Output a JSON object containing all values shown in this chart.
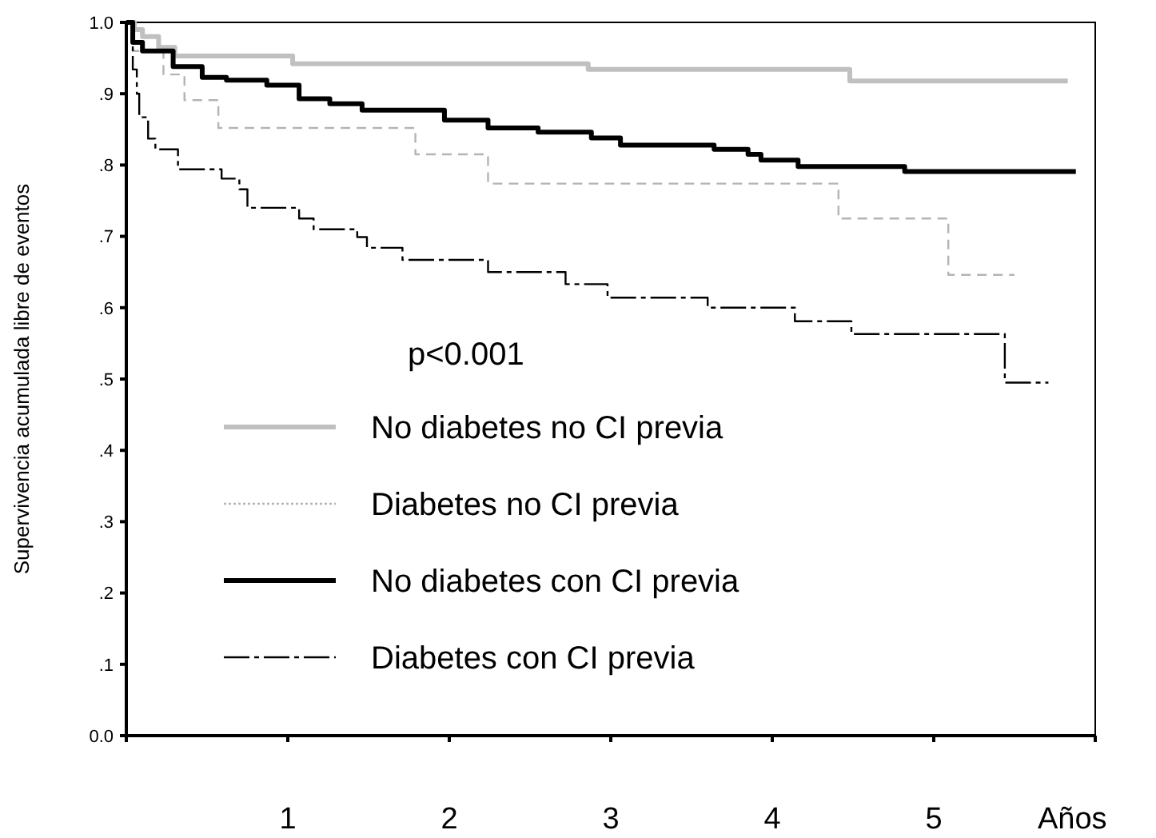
{
  "chart_data": {
    "type": "step",
    "ylabel": "Supervivencia acumulada libre de eventos",
    "xlabel": "Años",
    "xlim": [
      0,
      6
    ],
    "ylim": [
      0,
      1
    ],
    "xticks": [
      {
        "value": 0,
        "label": null
      },
      1,
      2,
      3,
      4,
      5,
      {
        "value": 6,
        "label": null
      }
    ],
    "yticks": [
      {
        "value": 0,
        "label": "0.0"
      },
      {
        "value": 0.1,
        "label": ".1"
      },
      {
        "value": 0.2,
        "label": ".2"
      },
      {
        "value": 0.3,
        "label": ".3"
      },
      {
        "value": 0.4,
        "label": ".4"
      },
      {
        "value": 0.5,
        "label": ".5"
      },
      {
        "value": 0.6,
        "label": ".6"
      },
      {
        "value": 0.7,
        "label": ".7"
      },
      {
        "value": 0.8,
        "label": ".8"
      },
      {
        "value": 0.9,
        "label": ".9"
      },
      {
        "value": 1,
        "label": "1.0"
      }
    ],
    "grid": false,
    "legend": "bottom left",
    "annotations": [
      "p<0.001"
    ],
    "series": [
      {
        "name": "No diabetes no CI previa",
        "color": "#c0c0c0",
        "line_style": "solid",
        "x": [
          0,
          0.05,
          0.1,
          0.2,
          0.3,
          1.03,
          2.86,
          4.48,
          5.83
        ],
        "values": [
          1,
          0.99,
          0.98,
          0.965,
          0.953,
          0.942,
          0.934,
          0.918,
          0.918
        ]
      },
      {
        "name": "Diabetes no CI previa",
        "color": "#b4b4b4",
        "line_style": "dashed",
        "x": [
          0,
          0.04,
          0.23,
          0.36,
          0.57,
          1.79,
          2.24,
          4.41,
          5.09,
          5.5
        ],
        "values": [
          1,
          0.96,
          0.927,
          0.891,
          0.852,
          0.815,
          0.774,
          0.725,
          0.646,
          0.646
        ]
      },
      {
        "name": "No diabetes con CI previa",
        "color": "#000000",
        "line_style": "solid",
        "x": [
          0,
          0.04,
          0.1,
          0.29,
          0.47,
          0.62,
          0.87,
          1.07,
          1.26,
          1.46,
          1.97,
          2.24,
          2.55,
          2.88,
          3.06,
          3.64,
          3.85,
          3.93,
          4.16,
          4.82,
          5.88
        ],
        "values": [
          1,
          0.972,
          0.96,
          0.938,
          0.923,
          0.919,
          0.912,
          0.893,
          0.886,
          0.877,
          0.863,
          0.852,
          0.846,
          0.838,
          0.828,
          0.822,
          0.815,
          0.807,
          0.798,
          0.791,
          0.791
        ]
      },
      {
        "name": "Diabetes con CI previa",
        "color": "#000000",
        "line_style": "dashed",
        "x": [
          0,
          0.04,
          0.065,
          0.08,
          0.135,
          0.18,
          0.32,
          0.59,
          0.7,
          0.75,
          1.07,
          1.16,
          1.43,
          1.49,
          1.71,
          2.24,
          2.72,
          2.98,
          3.6,
          4.14,
          4.49,
          5.44,
          5.71
        ],
        "values": [
          1,
          0.934,
          0.9,
          0.867,
          0.837,
          0.822,
          0.794,
          0.781,
          0.766,
          0.74,
          0.725,
          0.71,
          0.699,
          0.684,
          0.667,
          0.65,
          0.633,
          0.614,
          0.6,
          0.581,
          0.563,
          0.495,
          0.495
        ]
      }
    ]
  }
}
